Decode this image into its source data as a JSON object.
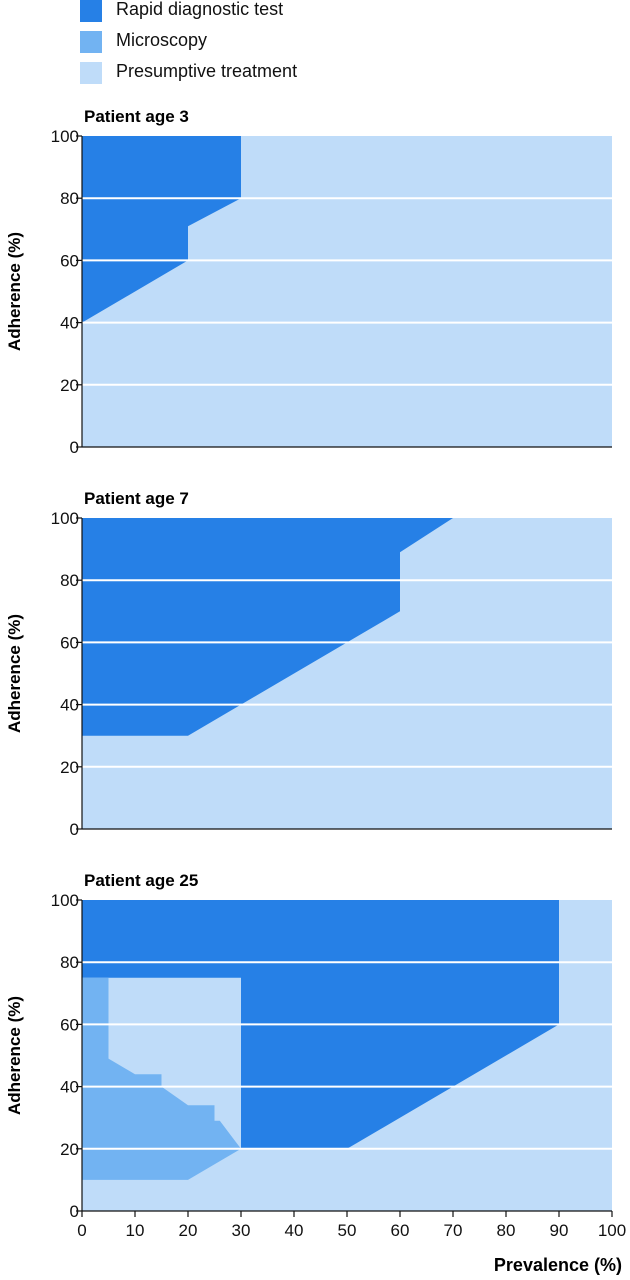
{
  "colors": {
    "rdt": "#2680e6",
    "microscopy": "#72b3f2",
    "presumptive": "#bfdcf9",
    "grid": "#ffffff"
  },
  "legend": [
    {
      "key": "rdt",
      "label": "Rapid diagnostic test"
    },
    {
      "key": "microscopy",
      "label": "Microscopy"
    },
    {
      "key": "presumptive",
      "label": "Presumptive treatment"
    }
  ],
  "chart_data": [
    {
      "type": "area",
      "title": "Patient age 3",
      "xlabel": "",
      "ylabel": "Adherence (%)",
      "xlim": [
        0,
        100
      ],
      "ylim": [
        0,
        100
      ],
      "yticks": [
        0,
        20,
        40,
        60,
        80,
        100
      ],
      "grid": true,
      "regions": [
        {
          "key": "presumptive",
          "polygon": [
            [
              0,
              0
            ],
            [
              100,
              0
            ],
            [
              100,
              100
            ],
            [
              0,
              100
            ]
          ]
        },
        {
          "key": "rdt",
          "polygon": [
            [
              0,
              100
            ],
            [
              30,
              100
            ],
            [
              30,
              80
            ],
            [
              20,
              71
            ],
            [
              20,
              60
            ],
            [
              0,
              40
            ]
          ]
        }
      ]
    },
    {
      "type": "area",
      "title": "Patient age 7",
      "xlabel": "",
      "ylabel": "Adherence (%)",
      "xlim": [
        0,
        100
      ],
      "ylim": [
        0,
        100
      ],
      "yticks": [
        0,
        20,
        40,
        60,
        80,
        100
      ],
      "grid": true,
      "regions": [
        {
          "key": "presumptive",
          "polygon": [
            [
              0,
              0
            ],
            [
              100,
              0
            ],
            [
              100,
              100
            ],
            [
              0,
              100
            ]
          ]
        },
        {
          "key": "rdt",
          "polygon": [
            [
              0,
              100
            ],
            [
              70,
              100
            ],
            [
              60,
              89
            ],
            [
              60,
              70
            ],
            [
              20,
              30
            ],
            [
              0,
              30
            ]
          ]
        }
      ]
    },
    {
      "type": "area",
      "title": "Patient age 25",
      "xlabel": "Prevalence (%)",
      "ylabel": "Adherence (%)",
      "xlim": [
        0,
        100
      ],
      "ylim": [
        0,
        100
      ],
      "yticks": [
        0,
        20,
        40,
        60,
        80,
        100
      ],
      "xticks": [
        0,
        10,
        20,
        30,
        40,
        50,
        60,
        70,
        80,
        90,
        100
      ],
      "grid": true,
      "regions": [
        {
          "key": "presumptive",
          "polygon": [
            [
              0,
              0
            ],
            [
              100,
              0
            ],
            [
              100,
              100
            ],
            [
              0,
              100
            ]
          ]
        },
        {
          "key": "rdt",
          "polygon": [
            [
              0,
              100
            ],
            [
              90,
              100
            ],
            [
              90,
              60
            ],
            [
              50,
              20
            ],
            [
              30,
              20
            ],
            [
              30,
              75
            ],
            [
              0,
              75
            ]
          ]
        },
        {
          "key": "microscopy",
          "polygon": [
            [
              0,
              10
            ],
            [
              20,
              10
            ],
            [
              30,
              20
            ],
            [
              26,
              29
            ],
            [
              25,
              29
            ],
            [
              25,
              34
            ],
            [
              20,
              34
            ],
            [
              15,
              40
            ],
            [
              15,
              44
            ],
            [
              10,
              44
            ],
            [
              5,
              49
            ],
            [
              5,
              75
            ],
            [
              0,
              75
            ]
          ]
        }
      ]
    }
  ]
}
